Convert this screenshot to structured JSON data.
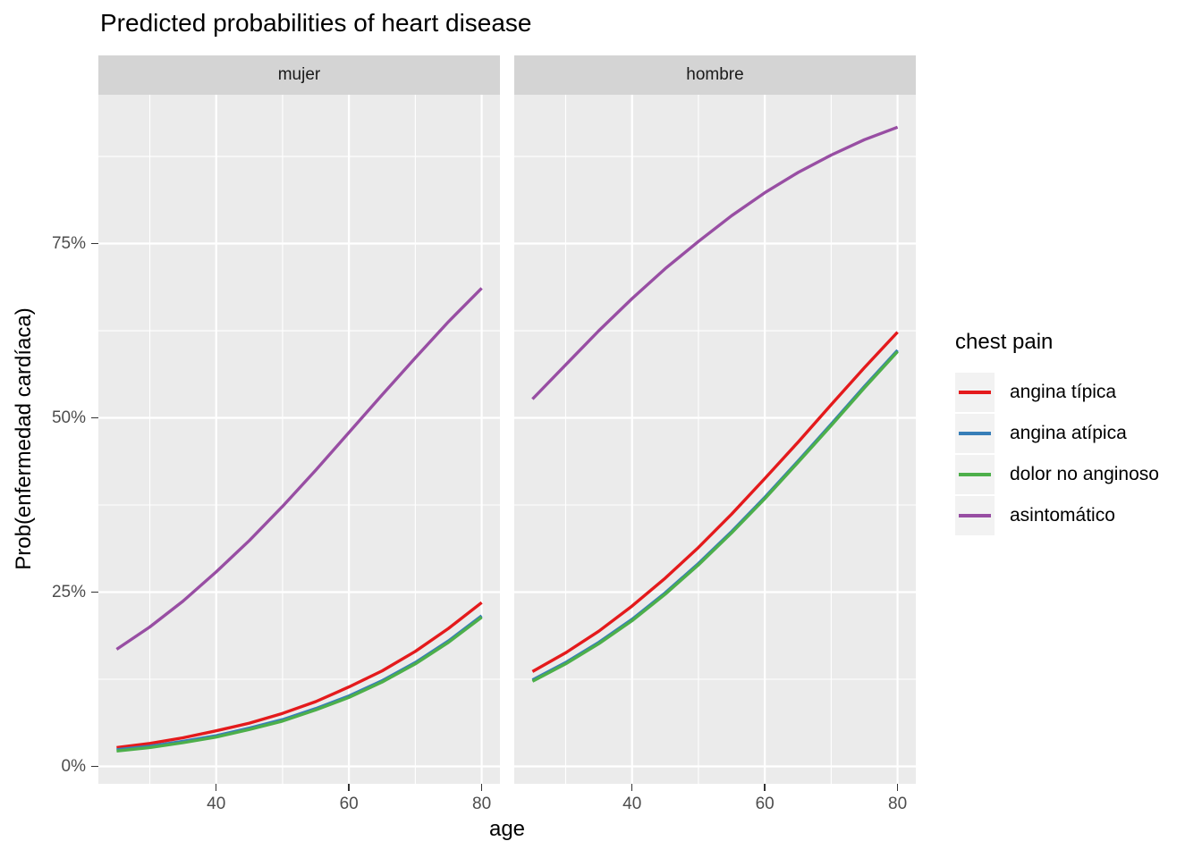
{
  "title": "Predicted probabilities of heart disease",
  "facets": [
    {
      "label": "mujer"
    },
    {
      "label": "hombre"
    }
  ],
  "x_axis": {
    "title": "age",
    "tick_labels": [
      "40",
      "60",
      "80"
    ],
    "tick_values": [
      40,
      60,
      80
    ]
  },
  "y_axis": {
    "title": "Prob(enfermedad cardíaca)",
    "tick_labels": [
      "0%",
      "25%",
      "50%",
      "75%"
    ],
    "tick_values": [
      0,
      0.25,
      0.5,
      0.75
    ]
  },
  "legend": {
    "title": "chest pain",
    "position": "right",
    "entries": [
      {
        "label": "angina típica",
        "color": "#E41A1C"
      },
      {
        "label": "angina atípica",
        "color": "#377EB8"
      },
      {
        "label": "dolor no anginoso",
        "color": "#4DAF4A"
      },
      {
        "label": "asintomático",
        "color": "#984EA3"
      }
    ]
  },
  "colors": {
    "panel_bg": "#EBEBEB",
    "strip_bg": "#D4D4D4",
    "gridline": "#FFFFFF",
    "axis_text": "#4D4D4D",
    "tick_mark": "#333333",
    "legend_key_bg": "#F2F2F2"
  },
  "chart_data": {
    "type": "line",
    "title": "Predicted probabilities of heart disease",
    "xlabel": "age",
    "ylabel": "Prob(enfermedad cardíaca)",
    "grid": true,
    "legend_position": "right",
    "facet_labels": [
      "mujer",
      "hombre"
    ],
    "x": [
      25,
      30,
      35,
      40,
      45,
      50,
      55,
      60,
      65,
      70,
      75,
      80
    ],
    "x_range": [
      22.25,
      82.75
    ],
    "y_range": [
      -0.025,
      0.9635
    ],
    "x_major_gridlines": [
      40,
      60,
      80
    ],
    "x_minor_gridlines": [
      30,
      50,
      70
    ],
    "y_major_gridlines": [
      0,
      0.25,
      0.5,
      0.75
    ],
    "y_minor_gridlines": [
      0.125,
      0.375,
      0.625,
      0.875
    ],
    "facet_series": [
      {
        "facet": "mujer",
        "series": [
          {
            "name": "angina típica",
            "color": "#E41A1C",
            "values": [
              0.027,
              0.033,
              0.041,
              0.051,
              0.062,
              0.076,
              0.093,
              0.114,
              0.137,
              0.165,
              0.198,
              0.235
            ]
          },
          {
            "name": "angina atípica",
            "color": "#377EB8",
            "values": [
              0.024,
              0.029,
              0.036,
              0.044,
              0.055,
              0.067,
              0.083,
              0.101,
              0.123,
              0.149,
              0.18,
              0.216
            ]
          },
          {
            "name": "dolor no anginoso",
            "color": "#4DAF4A",
            "values": [
              0.022,
              0.027,
              0.034,
              0.042,
              0.053,
              0.065,
              0.081,
              0.099,
              0.121,
              0.147,
              0.178,
              0.214
            ]
          },
          {
            "name": "asintomático",
            "color": "#984EA3",
            "values": [
              0.168,
              0.2,
              0.237,
              0.279,
              0.324,
              0.373,
              0.425,
              0.479,
              0.533,
              0.586,
              0.638,
              0.686
            ]
          }
        ]
      },
      {
        "facet": "hombre",
        "series": [
          {
            "name": "angina típica",
            "color": "#E41A1C",
            "values": [
              0.136,
              0.163,
              0.194,
              0.23,
              0.27,
              0.314,
              0.362,
              0.413,
              0.465,
              0.519,
              0.572,
              0.623
            ]
          },
          {
            "name": "angina atípica",
            "color": "#377EB8",
            "values": [
              0.124,
              0.149,
              0.178,
              0.211,
              0.249,
              0.291,
              0.337,
              0.386,
              0.438,
              0.491,
              0.545,
              0.597
            ]
          },
          {
            "name": "dolor no anginoso",
            "color": "#4DAF4A",
            "values": [
              0.122,
              0.147,
              0.176,
              0.209,
              0.247,
              0.289,
              0.335,
              0.384,
              0.436,
              0.489,
              0.543,
              0.595
            ]
          },
          {
            "name": "asintomático",
            "color": "#984EA3",
            "values": [
              0.527,
              0.576,
              0.625,
              0.671,
              0.714,
              0.753,
              0.79,
              0.823,
              0.852,
              0.877,
              0.899,
              0.917
            ]
          }
        ]
      }
    ]
  }
}
